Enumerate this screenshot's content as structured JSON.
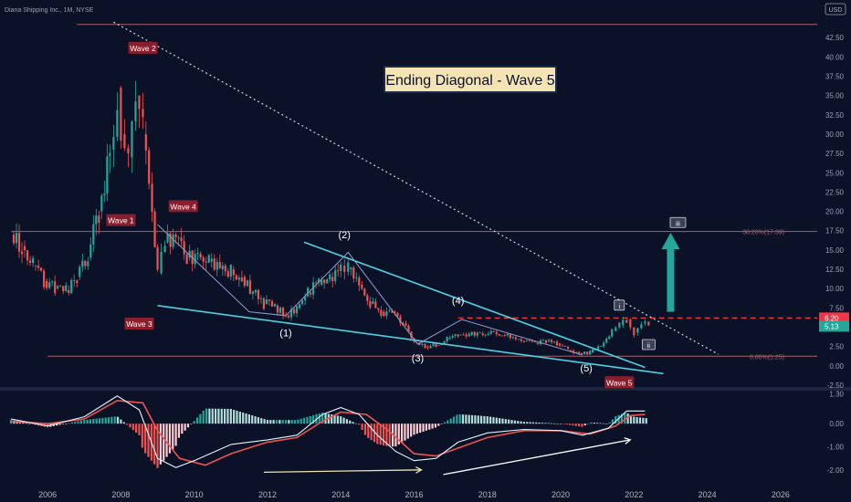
{
  "header": {
    "symbol_label": "Diana Shipping Inc., 1M, NYSE",
    "currency": "USD"
  },
  "chart_data": {
    "type": "candlestick",
    "title": "Ending Diagonal - Wave 5",
    "ylabel": "",
    "xlabel": "",
    "ylim": [
      -2.5,
      45
    ],
    "yticks": [
      "-2.50",
      "0.00",
      "2.50",
      "5.00",
      "7.50",
      "10.00",
      "12.50",
      "15.00",
      "17.50",
      "20.00",
      "22.50",
      "25.00",
      "27.50",
      "30.00",
      "32.50",
      "35.00",
      "37.50",
      "40.00",
      "42.50"
    ],
    "xticks": [
      "2006",
      "2008",
      "2010",
      "2012",
      "2014",
      "2016",
      "2018",
      "2020",
      "2022",
      "2024",
      "2026"
    ],
    "price_points": [
      {
        "t": 2005.0,
        "v": 17.0
      },
      {
        "t": 2005.3,
        "v": 15.5
      },
      {
        "t": 2005.6,
        "v": 13.0
      },
      {
        "t": 2005.9,
        "v": 11.0
      },
      {
        "t": 2006.2,
        "v": 10.0
      },
      {
        "t": 2006.5,
        "v": 9.8
      },
      {
        "t": 2006.8,
        "v": 11.5
      },
      {
        "t": 2007.1,
        "v": 14.0
      },
      {
        "t": 2007.4,
        "v": 20.0
      },
      {
        "t": 2007.7,
        "v": 28.0
      },
      {
        "t": 2007.9,
        "v": 36.0
      },
      {
        "t": 2008.0,
        "v": 30.0
      },
      {
        "t": 2008.2,
        "v": 27.0
      },
      {
        "t": 2008.4,
        "v": 35.0
      },
      {
        "t": 2008.6,
        "v": 30.0
      },
      {
        "t": 2008.85,
        "v": 20.0
      },
      {
        "t": 2009.0,
        "v": 12.0
      },
      {
        "t": 2009.2,
        "v": 16.0
      },
      {
        "t": 2009.5,
        "v": 16.5
      },
      {
        "t": 2009.8,
        "v": 14.0
      },
      {
        "t": 2010.1,
        "v": 14.5
      },
      {
        "t": 2010.4,
        "v": 13.5
      },
      {
        "t": 2010.7,
        "v": 12.5
      },
      {
        "t": 2011.0,
        "v": 12.5
      },
      {
        "t": 2011.3,
        "v": 11.5
      },
      {
        "t": 2011.6,
        "v": 9.5
      },
      {
        "t": 2011.9,
        "v": 8.0
      },
      {
        "t": 2012.2,
        "v": 7.8
      },
      {
        "t": 2012.5,
        "v": 6.5
      },
      {
        "t": 2012.8,
        "v": 7.5
      },
      {
        "t": 2013.1,
        "v": 9.5
      },
      {
        "t": 2013.4,
        "v": 10.5
      },
      {
        "t": 2013.7,
        "v": 11.5
      },
      {
        "t": 2014.0,
        "v": 13.0
      },
      {
        "t": 2014.2,
        "v": 12.5
      },
      {
        "t": 2014.5,
        "v": 10.5
      },
      {
        "t": 2014.8,
        "v": 8.0
      },
      {
        "t": 2015.1,
        "v": 7.0
      },
      {
        "t": 2015.4,
        "v": 7.0
      },
      {
        "t": 2015.7,
        "v": 5.5
      },
      {
        "t": 2016.0,
        "v": 3.0
      },
      {
        "t": 2016.3,
        "v": 2.5
      },
      {
        "t": 2016.6,
        "v": 2.7
      },
      {
        "t": 2016.9,
        "v": 3.5
      },
      {
        "t": 2017.2,
        "v": 4.0
      },
      {
        "t": 2017.5,
        "v": 4.0
      },
      {
        "t": 2017.8,
        "v": 4.2
      },
      {
        "t": 2018.1,
        "v": 4.5
      },
      {
        "t": 2018.4,
        "v": 4.0
      },
      {
        "t": 2018.7,
        "v": 3.7
      },
      {
        "t": 2019.0,
        "v": 3.3
      },
      {
        "t": 2019.3,
        "v": 3.0
      },
      {
        "t": 2019.6,
        "v": 3.2
      },
      {
        "t": 2019.9,
        "v": 2.9
      },
      {
        "t": 2020.2,
        "v": 2.0
      },
      {
        "t": 2020.5,
        "v": 1.6
      },
      {
        "t": 2020.8,
        "v": 1.7
      },
      {
        "t": 2021.1,
        "v": 2.5
      },
      {
        "t": 2021.4,
        "v": 4.5
      },
      {
        "t": 2021.6,
        "v": 5.3
      },
      {
        "t": 2021.8,
        "v": 6.0
      },
      {
        "t": 2022.0,
        "v": 4.3
      },
      {
        "t": 2022.2,
        "v": 5.5
      },
      {
        "t": 2022.4,
        "v": 5.13
      }
    ],
    "overlay_lines": [
      {
        "name": "upper-trendline",
        "style": "solid",
        "color": "#4dd0e1",
        "points": [
          [
            2013.0,
            16.0
          ],
          [
            2022.3,
            -0.2
          ]
        ]
      },
      {
        "name": "lower-trendline",
        "style": "solid",
        "color": "#4dd0e1",
        "points": [
          [
            2009.0,
            7.8
          ],
          [
            2022.8,
            -1.0
          ]
        ]
      },
      {
        "name": "dotted-diagonal",
        "style": "dotted",
        "color": "#d1d4dc",
        "points": [
          [
            2007.8,
            44.5
          ],
          [
            2024.3,
            1.5
          ]
        ]
      },
      {
        "name": "wave-path",
        "style": "solid",
        "color": "#9598c7",
        "points": [
          [
            2009.0,
            18.3
          ],
          [
            2011.5,
            7.0
          ],
          [
            2012.5,
            6.5
          ],
          [
            2014.2,
            14.7
          ],
          [
            2016.1,
            2.8
          ],
          [
            2017.3,
            6.0
          ],
          [
            2020.6,
            1.4
          ]
        ]
      }
    ],
    "hlines": [
      {
        "name": "fib-38",
        "y": 17.39,
        "label": "38.20%(17.39)",
        "color": "#a85e6b",
        "style": "solid",
        "from": 2005.0
      },
      {
        "name": "fib-0",
        "y": 1.25,
        "label": "0.00%(1.25)",
        "color": "#a85e6b",
        "style": "solid",
        "from": 2006.0
      },
      {
        "name": "resistance-dashed",
        "y": 6.2,
        "label": "",
        "color": "#f23645",
        "style": "dashed",
        "from": 2017.2
      },
      {
        "name": "top-line",
        "y": 44.2,
        "label": "",
        "color": "#a85e6b",
        "style": "solid",
        "from": 2006.8
      }
    ],
    "price_tags": [
      {
        "value": "6.20",
        "color": "#f23645",
        "y": 6.2
      },
      {
        "value": "5.13",
        "color": "#26a69a",
        "y": 5.13
      }
    ],
    "annotations": {
      "waves": [
        {
          "text": "Wave 2",
          "t": 2008.6,
          "y": 41.0
        },
        {
          "text": "Wave 1",
          "t": 2008.0,
          "y": 18.7
        },
        {
          "text": "Wave 4",
          "t": 2009.7,
          "y": 20.5
        },
        {
          "text": "Wave 3",
          "t": 2008.5,
          "y": 5.3
        },
        {
          "text": "Wave 5",
          "t": 2021.6,
          "y": -2.3
        }
      ],
      "subwaves": [
        {
          "text": "(1)",
          "t": 2012.5,
          "y": 3.8
        },
        {
          "text": "(2)",
          "t": 2014.1,
          "y": 16.5
        },
        {
          "text": "(3)",
          "t": 2016.1,
          "y": 0.6
        },
        {
          "text": "(4)",
          "t": 2017.2,
          "y": 8.0
        },
        {
          "text": "(5)",
          "t": 2020.7,
          "y": -0.7
        }
      ],
      "boxed": [
        {
          "text": "i",
          "t": 2021.6,
          "y": 7.8
        },
        {
          "text": "ii",
          "t": 2022.4,
          "y": 2.7
        },
        {
          "text": "iii",
          "t": 2023.2,
          "y": 18.5
        }
      ]
    },
    "arrow": {
      "from": [
        2023.0,
        7.0
      ],
      "to": [
        2023.0,
        17.0
      ],
      "color": "#26a69a"
    },
    "macd": {
      "ylim": [
        -2.6,
        1.35
      ],
      "yticks": [
        "1.30",
        "0.00",
        "-1.00",
        "-2.00"
      ],
      "macd_line": [
        [
          2005.0,
          0.2
        ],
        [
          2006.0,
          -0.1
        ],
        [
          2007.0,
          0.3
        ],
        [
          2007.9,
          1.2
        ],
        [
          2008.5,
          0.6
        ],
        [
          2009.0,
          -1.5
        ],
        [
          2009.5,
          -1.9
        ],
        [
          2010.0,
          -1.6
        ],
        [
          2011.0,
          -0.9
        ],
        [
          2012.0,
          -0.7
        ],
        [
          2012.8,
          -0.5
        ],
        [
          2013.5,
          0.4
        ],
        [
          2014.0,
          0.7
        ],
        [
          2014.5,
          0.4
        ],
        [
          2015.0,
          -0.5
        ],
        [
          2015.5,
          -1.2
        ],
        [
          2016.0,
          -1.6
        ],
        [
          2016.6,
          -1.5
        ],
        [
          2017.2,
          -0.8
        ],
        [
          2018.0,
          -0.4
        ],
        [
          2019.0,
          -0.25
        ],
        [
          2020.0,
          -0.3
        ],
        [
          2020.6,
          -0.5
        ],
        [
          2021.3,
          -0.2
        ],
        [
          2021.8,
          0.55
        ],
        [
          2022.3,
          0.55
        ]
      ],
      "signal_line": [
        [
          2005.0,
          0.1
        ],
        [
          2006.0,
          0.0
        ],
        [
          2007.0,
          0.2
        ],
        [
          2007.9,
          1.0
        ],
        [
          2008.6,
          0.9
        ],
        [
          2009.0,
          -0.3
        ],
        [
          2009.6,
          -1.5
        ],
        [
          2010.3,
          -1.8
        ],
        [
          2011.0,
          -1.3
        ],
        [
          2012.0,
          -0.8
        ],
        [
          2012.8,
          -0.6
        ],
        [
          2013.5,
          0.1
        ],
        [
          2014.0,
          0.5
        ],
        [
          2014.7,
          0.4
        ],
        [
          2015.3,
          -0.3
        ],
        [
          2016.0,
          -1.3
        ],
        [
          2016.6,
          -1.4
        ],
        [
          2017.3,
          -1.0
        ],
        [
          2018.0,
          -0.6
        ],
        [
          2019.0,
          -0.3
        ],
        [
          2020.0,
          -0.3
        ],
        [
          2020.8,
          -0.45
        ],
        [
          2021.5,
          -0.1
        ],
        [
          2021.9,
          0.35
        ],
        [
          2022.3,
          0.4
        ]
      ],
      "divergence_arrows": [
        {
          "from": [
            2011.9,
            -2.1
          ],
          "to": [
            2016.2,
            -2.0
          ],
          "color": "#f0e2b0"
        },
        {
          "from": [
            2016.8,
            -2.2
          ],
          "to": [
            2021.9,
            -0.7
          ],
          "color": "#ffffff"
        }
      ]
    }
  }
}
